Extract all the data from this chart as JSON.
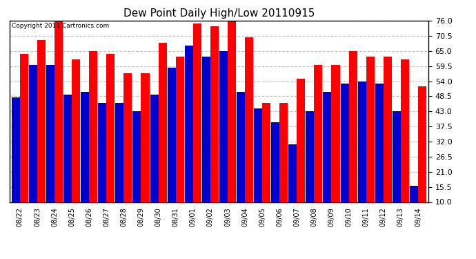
{
  "title": "Dew Point Daily High/Low 20110915",
  "copyright": "Copyright 2011 Cartronics.com",
  "dates": [
    "08/22",
    "08/23",
    "08/24",
    "08/25",
    "08/26",
    "08/27",
    "08/28",
    "08/29",
    "08/30",
    "08/31",
    "09/01",
    "09/02",
    "09/03",
    "09/04",
    "09/05",
    "09/06",
    "09/07",
    "09/08",
    "09/09",
    "09/10",
    "09/11",
    "09/12",
    "09/13",
    "09/14"
  ],
  "highs": [
    64,
    69,
    77,
    62,
    65,
    64,
    57,
    57,
    68,
    63,
    75,
    74,
    76,
    70,
    46,
    46,
    55,
    60,
    60,
    65,
    63,
    63,
    62,
    52
  ],
  "lows": [
    48,
    60,
    60,
    49,
    50,
    46,
    46,
    43,
    49,
    59,
    67,
    63,
    65,
    50,
    44,
    39,
    31,
    43,
    50,
    53,
    54,
    53,
    43,
    16
  ],
  "high_color": "#ff0000",
  "low_color": "#0000cc",
  "bg_color": "#ffffff",
  "grid_color": "#c0c0c0",
  "ymin": 10,
  "ymax": 76,
  "yticks": [
    10.0,
    15.5,
    21.0,
    26.5,
    32.0,
    37.5,
    43.0,
    48.5,
    54.0,
    59.5,
    65.0,
    70.5,
    76.0
  ]
}
